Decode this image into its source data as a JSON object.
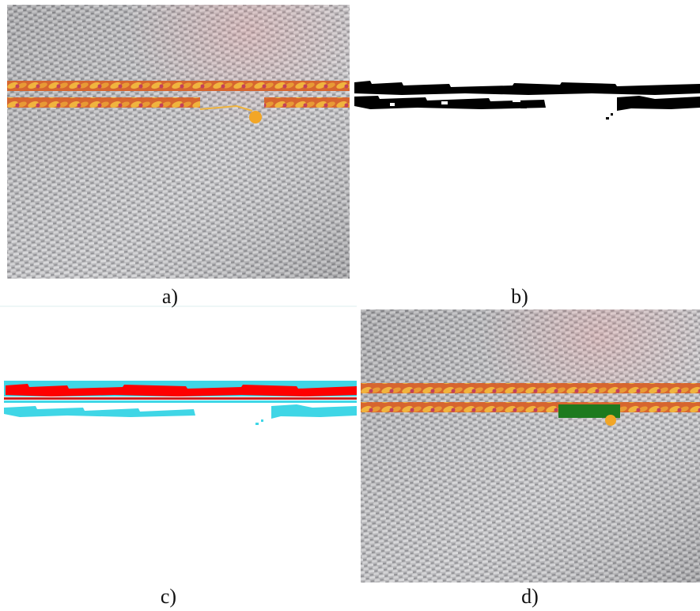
{
  "figure": {
    "panels": [
      {
        "caption": "a)",
        "content": "fabric-photo-with-defect"
      },
      {
        "caption": "b)",
        "content": "binary-segmentation-mask"
      },
      {
        "caption": "c)",
        "content": "color-coded-detection"
      },
      {
        "caption": "d)",
        "content": "fabric-photo-with-detected-gap"
      }
    ]
  },
  "colors": {
    "fabric": "#b9b9bb",
    "stitch_orange": "#e8a53a",
    "stitch_red": "#c9472d",
    "mask_black": "#000000",
    "detect_red": "#ff0000",
    "detect_cyan": "#3fd6e6",
    "gap_marker_green": "#1e7a1e"
  }
}
